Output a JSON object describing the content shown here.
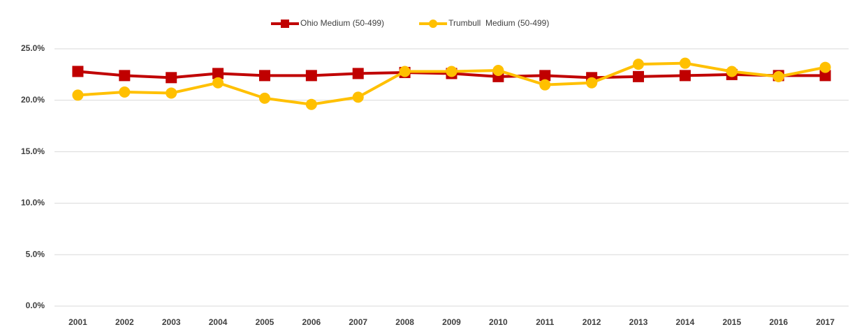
{
  "chart_data": {
    "type": "line",
    "categories": [
      "2001",
      "2002",
      "2003",
      "2004",
      "2005",
      "2006",
      "2007",
      "2008",
      "2009",
      "2010",
      "2011",
      "2012",
      "2013",
      "2014",
      "2015",
      "2016",
      "2017"
    ],
    "series": [
      {
        "name": "Ohio Medium (50-499)",
        "color": "#c00000",
        "marker": "square",
        "values": [
          22.8,
          22.4,
          22.2,
          22.6,
          22.4,
          22.4,
          22.6,
          22.7,
          22.6,
          22.3,
          22.4,
          22.2,
          22.3,
          22.4,
          22.5,
          22.4,
          22.4
        ]
      },
      {
        "name": "Trumbull  Medium (50-499)",
        "color": "#ffc000",
        "marker": "circle",
        "values": [
          20.5,
          20.8,
          20.7,
          21.7,
          20.2,
          19.6,
          20.3,
          22.8,
          22.8,
          22.9,
          21.5,
          21.7,
          23.5,
          23.6,
          22.8,
          22.3,
          23.2
        ]
      }
    ],
    "ylim": [
      0,
      25
    ],
    "yticks": [
      {
        "value": 0,
        "label": "0.0%"
      },
      {
        "value": 5,
        "label": "5.0%"
      },
      {
        "value": 10,
        "label": "10.0%"
      },
      {
        "value": 15,
        "label": "15.0%"
      },
      {
        "value": 20,
        "label": "20.0%"
      },
      {
        "value": 25,
        "label": "25.0%"
      }
    ],
    "grid": true,
    "legend": "top"
  }
}
